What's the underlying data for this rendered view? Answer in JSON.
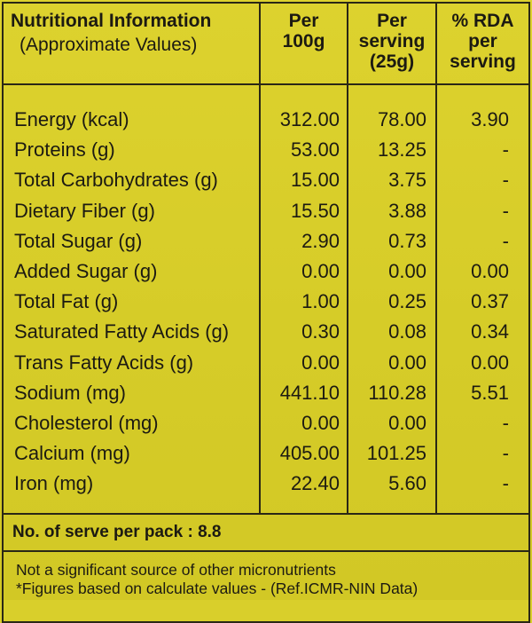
{
  "header": {
    "col1_line1": "Nutritional Information",
    "col1_line2": "(Approximate Values)",
    "col2_line1": "Per",
    "col2_line2": "100g",
    "col3_line1": "Per",
    "col3_line2": "serving",
    "col3_line3": "(25g)",
    "col4_line1": "% RDA",
    "col4_line2": "per",
    "col4_line3": "serving"
  },
  "rows": [
    {
      "name": "Energy (kcal)",
      "per100": "312.00",
      "serving": "78.00",
      "rda": "3.90"
    },
    {
      "name": "Proteins (g)",
      "per100": "53.00",
      "serving": "13.25",
      "rda": "-"
    },
    {
      "name": "Total Carbohydrates (g)",
      "per100": "15.00",
      "serving": "3.75",
      "rda": "-"
    },
    {
      "name": "Dietary Fiber (g)",
      "per100": "15.50",
      "serving": "3.88",
      "rda": "-"
    },
    {
      "name": "Total Sugar (g)",
      "per100": "2.90",
      "serving": "0.73",
      "rda": "-"
    },
    {
      "name": "Added Sugar (g)",
      "per100": "0.00",
      "serving": "0.00",
      "rda": "0.00"
    },
    {
      "name": "Total Fat (g)",
      "per100": "1.00",
      "serving": "0.25",
      "rda": "0.37"
    },
    {
      "name": "Saturated Fatty Acids (g)",
      "per100": "0.30",
      "serving": "0.08",
      "rda": "0.34"
    },
    {
      "name": "Trans Fatty Acids (g)",
      "per100": "0.00",
      "serving": "0.00",
      "rda": "0.00"
    },
    {
      "name": "Sodium (mg)",
      "per100": "441.10",
      "serving": "110.28",
      "rda": "5.51"
    },
    {
      "name": "Cholesterol (mg)",
      "per100": "0.00",
      "serving": "0.00",
      "rda": "-"
    },
    {
      "name": "Calcium (mg)",
      "per100": "405.00",
      "serving": "101.25",
      "rda": "-"
    },
    {
      "name": "Iron (mg)",
      "per100": "22.40",
      "serving": "5.60",
      "rda": "-"
    }
  ],
  "footer": {
    "serves": "No. of serve per pack : 8.8",
    "note1": "Not a significant source of other micronutrients",
    "note2": "*Figures based on calculate values - (Ref.ICMR-NIN Data)"
  },
  "colors": {
    "background": "#d9cf2b",
    "ink": "#1c1a12"
  }
}
